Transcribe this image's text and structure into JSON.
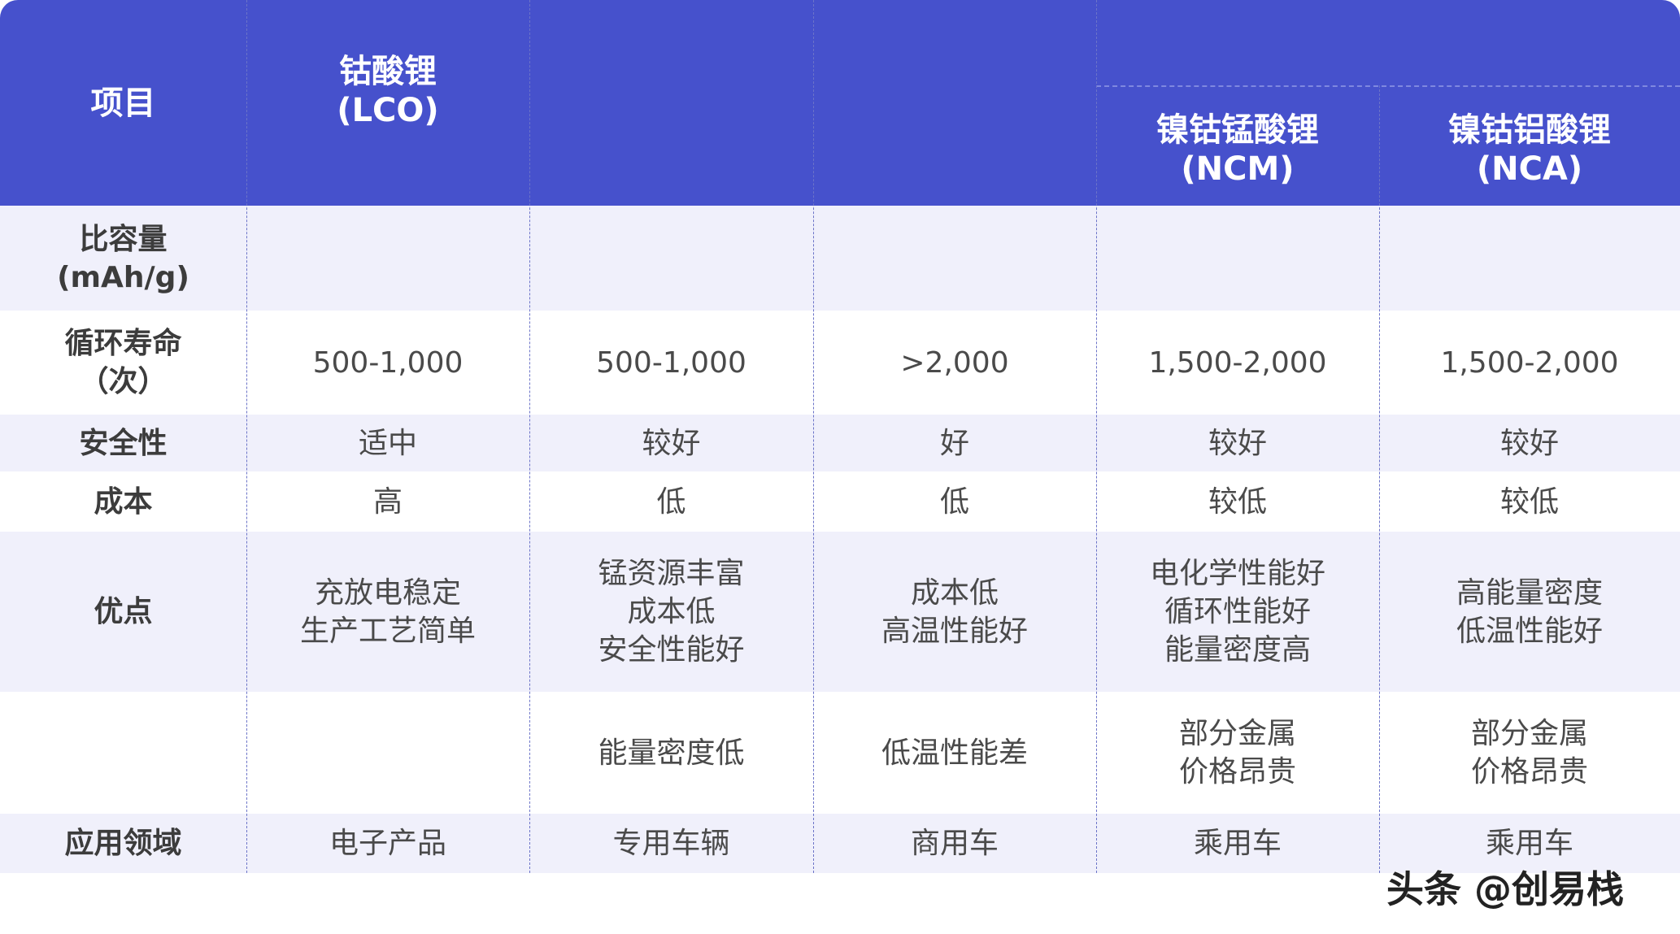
{
  "header": {
    "item_label": "项目",
    "columns": [
      "钴酸锂\n(LCO)",
      "",
      "",
      "镍钴锰酸锂\n(NCM)",
      "镍钴铝酸锂\n(NCA)"
    ]
  },
  "rows": [
    {
      "label": "比容量\n(mAh/g)",
      "cells": [
        "",
        "",
        "",
        "",
        ""
      ]
    },
    {
      "label": "循环寿命\n（次）",
      "cells": [
        "500-1,000",
        "500-1,000",
        ">2,000",
        "1,500-2,000",
        "1,500-2,000"
      ]
    },
    {
      "label": "安全性",
      "cells": [
        "适中",
        "较好",
        "好",
        "较好",
        "较好"
      ]
    },
    {
      "label": "成本",
      "cells": [
        "高",
        "低",
        "低",
        "较低",
        "较低"
      ]
    },
    {
      "label": "优点",
      "cells": [
        "充放电稳定\n生产工艺简单",
        "锰资源丰富\n成本低\n安全性能好",
        "成本低\n高温性能好",
        "电化学性能好\n循环性能好\n能量密度高",
        "高能量密度\n低温性能好"
      ]
    },
    {
      "label": "",
      "cells": [
        "",
        "能量密度低",
        "低温性能差",
        "部分金属\n价格昂贵",
        "部分金属\n价格昂贵"
      ]
    },
    {
      "label": "应用领域",
      "cells": [
        "电子产品",
        "专用车辆",
        "商用车",
        "乘用车",
        "乘用车"
      ]
    }
  ],
  "watermark": "头条 @创易栈",
  "colors": {
    "header_bg": "#4651cc",
    "alt_row_bg": "#f0f0fb"
  }
}
